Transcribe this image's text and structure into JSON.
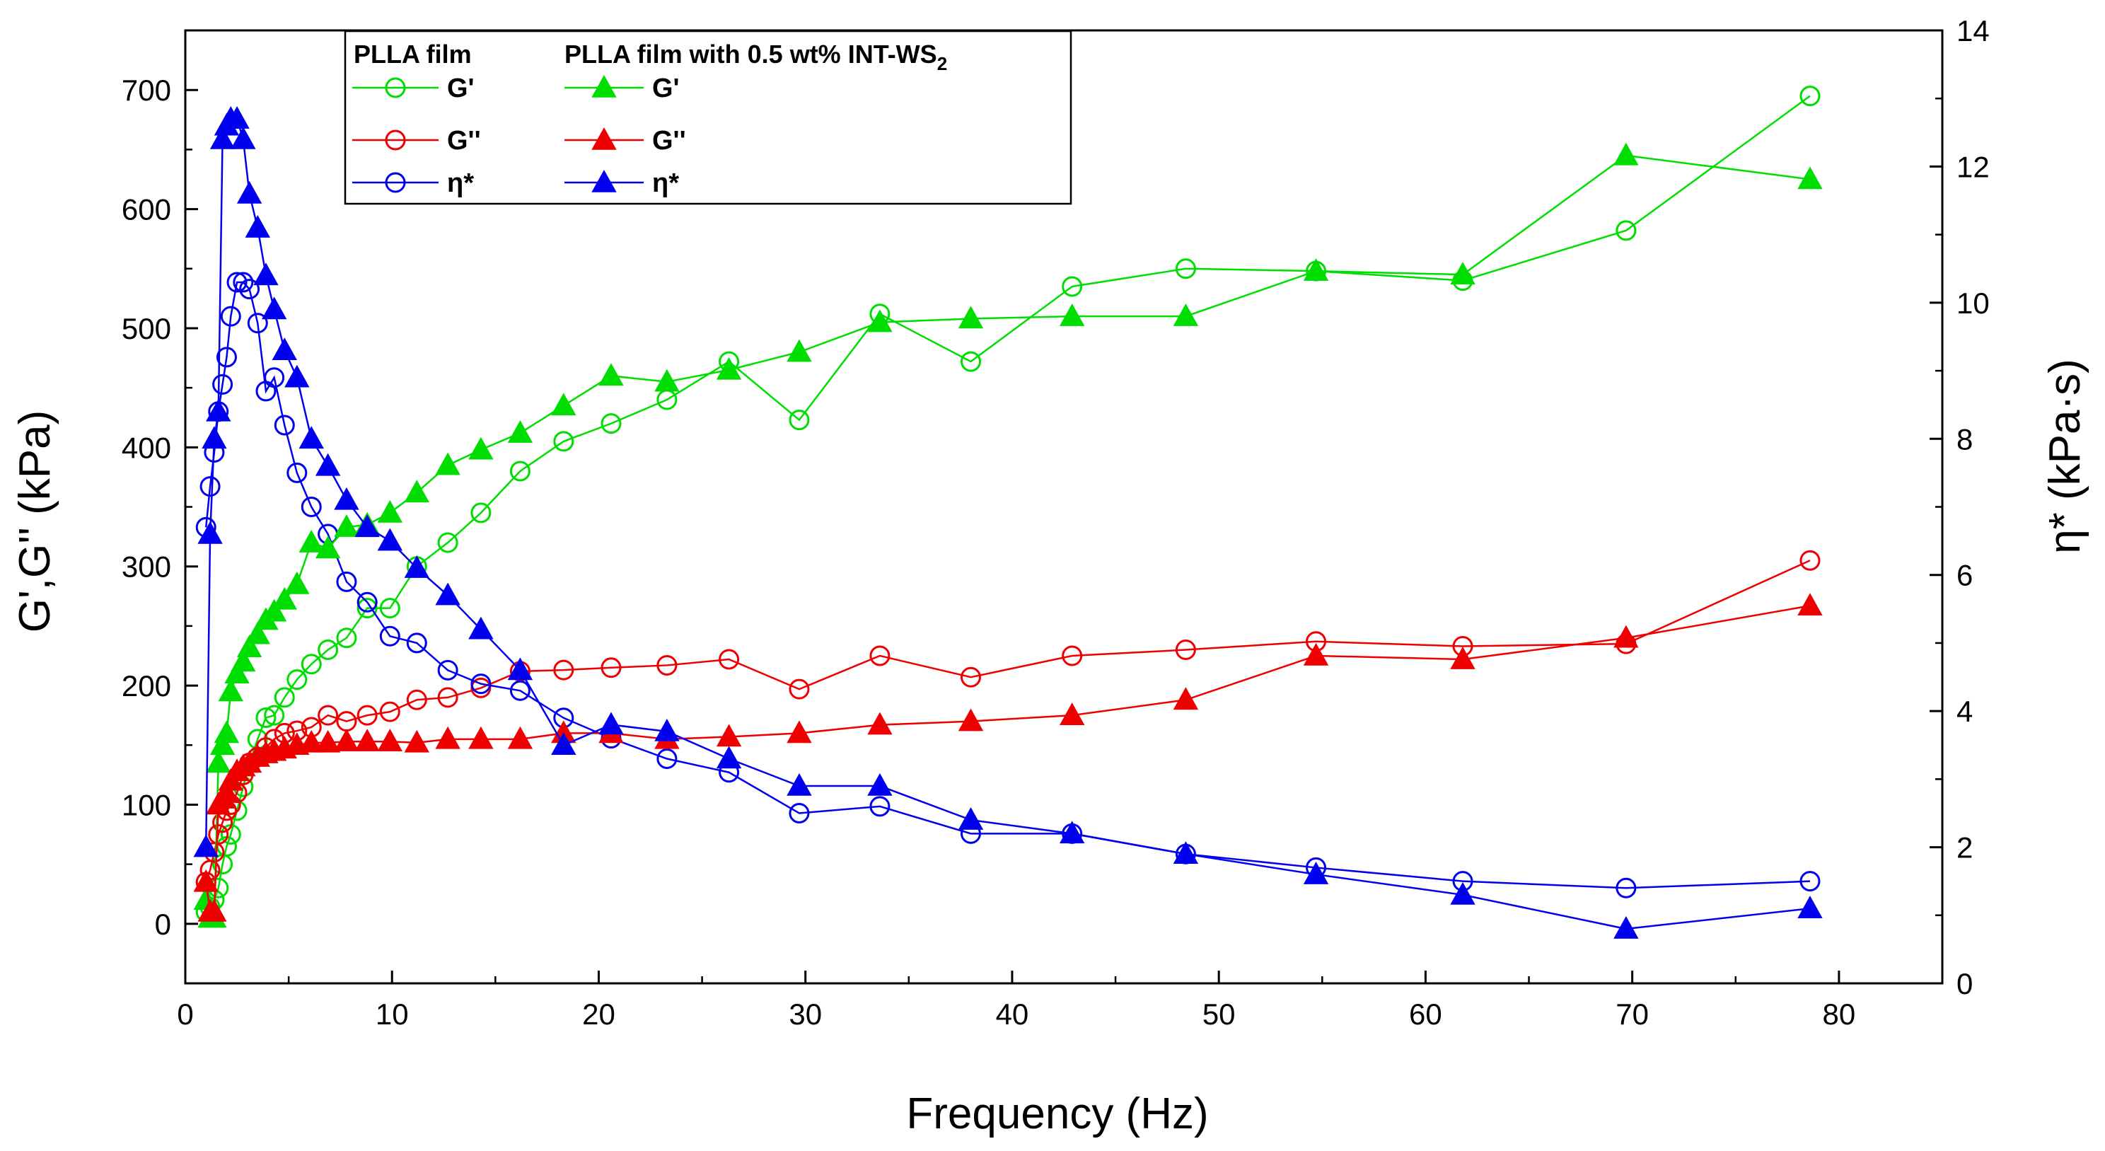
{
  "chart_data": {
    "type": "line",
    "xlabel": "Frequency (Hz)",
    "ylabel_left": "G',G'' (kPa)",
    "ylabel_right": "η* (kPa·s)",
    "xlim": [
      0,
      85
    ],
    "ylim_left": [
      -50,
      750
    ],
    "ylim_right": [
      0,
      14
    ],
    "xticks": [
      0,
      10,
      20,
      30,
      40,
      50,
      60,
      70,
      80
    ],
    "yticks_left": [
      0,
      100,
      200,
      300,
      400,
      500,
      600,
      700
    ],
    "yticks_right": [
      0,
      2,
      4,
      6,
      8,
      10,
      12,
      14
    ],
    "grid": false,
    "legend": {
      "placement": "top-left",
      "group_headers": [
        "PLLA film",
        "PLLA film with 0.5 wt% INT-WS"
      ],
      "header_subscript": "2"
    },
    "colors": {
      "green": "#00dd00",
      "red": "#ee0000",
      "blue": "#0000ee"
    },
    "series": [
      {
        "name": "G'",
        "group": "PLLA film",
        "marker": "circle-open",
        "color": "#00dd00",
        "axis": "left",
        "x": [
          1.0,
          1.2,
          1.4,
          1.6,
          1.8,
          2.0,
          2.2,
          2.5,
          2.8,
          3.1,
          3.5,
          3.9,
          4.3,
          4.8,
          5.4,
          6.1,
          6.9,
          7.8,
          8.8,
          9.9,
          11.2,
          12.7,
          14.3,
          16.2,
          18.3,
          20.6,
          23.3,
          26.3,
          29.7,
          33.6,
          38.0,
          42.9,
          48.4,
          54.7,
          61.8,
          69.7,
          78.6
        ],
        "y": [
          10,
          14,
          20,
          30,
          50,
          65,
          75,
          95,
          115,
          135,
          155,
          173,
          175,
          190,
          205,
          218,
          230,
          240,
          265,
          265,
          300,
          320,
          345,
          380,
          405,
          420,
          440,
          472,
          423,
          512,
          472,
          535,
          550,
          548,
          540,
          582,
          695
        ]
      },
      {
        "name": "G''",
        "group": "PLLA film",
        "marker": "circle-open",
        "color": "#ee0000",
        "axis": "left",
        "x": [
          1.0,
          1.2,
          1.4,
          1.6,
          1.8,
          2.0,
          2.2,
          2.5,
          2.8,
          3.1,
          3.5,
          3.9,
          4.3,
          4.8,
          5.4,
          6.1,
          6.9,
          7.8,
          8.8,
          9.9,
          11.2,
          12.7,
          14.3,
          16.2,
          18.3,
          20.6,
          23.3,
          26.3,
          29.7,
          33.6,
          38.0,
          42.9,
          48.4,
          54.7,
          61.8,
          69.7,
          78.6
        ],
        "y": [
          35,
          45,
          60,
          75,
          85,
          95,
          100,
          110,
          125,
          135,
          140,
          148,
          155,
          160,
          162,
          165,
          175,
          170,
          175,
          178,
          188,
          190,
          198,
          212,
          213,
          215,
          217,
          222,
          197,
          225,
          207,
          225,
          230,
          237,
          233,
          235,
          305
        ]
      },
      {
        "name": "η*",
        "group": "PLLA film",
        "marker": "circle-open",
        "color": "#0000ee",
        "axis": "right",
        "x": [
          1.0,
          1.2,
          1.4,
          1.6,
          1.8,
          2.0,
          2.2,
          2.5,
          2.8,
          3.1,
          3.5,
          3.9,
          4.3,
          4.8,
          5.4,
          6.1,
          6.9,
          7.8,
          8.8,
          9.9,
          11.2,
          12.7,
          14.3,
          16.2,
          18.3,
          20.6,
          23.3,
          26.3,
          29.7,
          33.6,
          38.0,
          42.9,
          48.4,
          54.7,
          61.8,
          69.7,
          78.6
        ],
        "y": [
          6.7,
          7.3,
          7.8,
          8.4,
          8.8,
          9.2,
          9.8,
          10.3,
          10.3,
          10.2,
          9.7,
          8.7,
          8.9,
          8.2,
          7.5,
          7.0,
          6.6,
          5.9,
          5.6,
          5.1,
          5.0,
          4.6,
          4.4,
          4.3,
          3.9,
          3.6,
          3.3,
          3.1,
          2.5,
          2.6,
          2.2,
          2.2,
          1.9,
          1.7,
          1.5,
          1.4,
          1.5
        ]
      },
      {
        "name": "G'",
        "group": "PLLA film with 0.5 wt% INT-WS2",
        "marker": "triangle-filled",
        "color": "#00dd00",
        "axis": "left",
        "x": [
          1.0,
          1.2,
          1.4,
          1.6,
          1.8,
          2.0,
          2.2,
          2.5,
          2.8,
          3.1,
          3.5,
          3.9,
          4.3,
          4.8,
          5.4,
          6.1,
          6.9,
          7.8,
          8.8,
          9.9,
          11.2,
          12.7,
          14.3,
          16.2,
          18.3,
          20.6,
          23.3,
          26.3,
          29.7,
          33.6,
          38.0,
          42.9,
          48.4,
          54.7,
          61.8,
          69.7,
          78.6
        ],
        "y": [
          20,
          5,
          5,
          135,
          150,
          160,
          195,
          210,
          220,
          232,
          243,
          255,
          262,
          272,
          285,
          320,
          315,
          333,
          335,
          345,
          362,
          385,
          398,
          412,
          435,
          460,
          455,
          465,
          480,
          505,
          508,
          510,
          510,
          548,
          545,
          645,
          625
        ]
      },
      {
        "name": "G''",
        "group": "PLLA film with 0.5 wt% INT-WS2",
        "marker": "triangle-filled",
        "color": "#ee0000",
        "axis": "left",
        "x": [
          1.0,
          1.2,
          1.4,
          1.6,
          1.8,
          2.0,
          2.2,
          2.5,
          2.8,
          3.1,
          3.5,
          3.9,
          4.3,
          4.8,
          5.4,
          6.1,
          6.9,
          7.8,
          8.8,
          9.9,
          11.2,
          12.7,
          14.3,
          16.2,
          18.3,
          20.6,
          23.3,
          26.3,
          29.7,
          33.6,
          38.0,
          42.9,
          48.4,
          54.7,
          61.8,
          69.7,
          78.6
        ],
        "y": [
          35,
          10,
          10,
          100,
          105,
          110,
          120,
          128,
          132,
          135,
          140,
          143,
          145,
          147,
          150,
          152,
          152,
          153,
          153,
          153,
          152,
          155,
          155,
          155,
          160,
          160,
          155,
          157,
          160,
          167,
          170,
          175,
          188,
          225,
          222,
          240,
          267
        ]
      },
      {
        "name": "η*",
        "group": "PLLA film with 0.5 wt% INT-WS2",
        "marker": "triangle-filled",
        "color": "#0000ee",
        "axis": "right",
        "x": [
          1.0,
          1.2,
          1.4,
          1.6,
          1.8,
          2.0,
          2.2,
          2.5,
          2.8,
          3.1,
          3.5,
          3.9,
          4.3,
          4.8,
          5.4,
          6.1,
          6.9,
          7.8,
          8.8,
          9.9,
          11.2,
          12.7,
          14.3,
          16.2,
          18.3,
          20.6,
          23.3,
          26.3,
          29.7,
          33.6,
          38.0,
          42.9,
          48.4,
          54.7,
          61.8,
          69.7,
          78.6
        ],
        "y": [
          2.0,
          6.6,
          8.0,
          8.4,
          12.4,
          12.6,
          12.7,
          12.7,
          12.4,
          11.6,
          11.1,
          10.4,
          9.9,
          9.3,
          8.9,
          8.0,
          7.6,
          7.1,
          6.7,
          6.5,
          6.1,
          5.7,
          5.2,
          4.6,
          3.5,
          3.8,
          3.7,
          3.3,
          2.9,
          2.9,
          2.4,
          2.2,
          1.9,
          1.6,
          1.3,
          0.8,
          1.1
        ]
      }
    ]
  }
}
